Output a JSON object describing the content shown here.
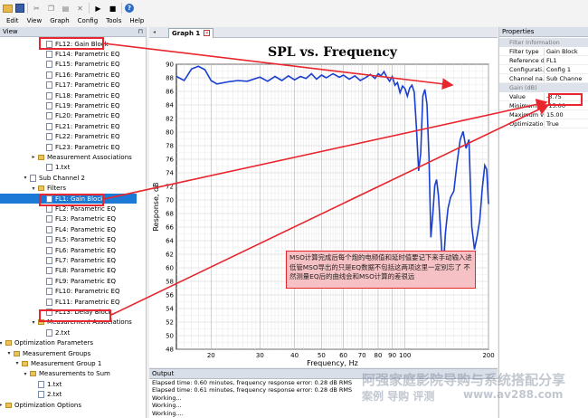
{
  "menu": [
    "Edit",
    "View",
    "Graph",
    "Config",
    "Tools",
    "Help"
  ],
  "view_panel": {
    "title": "View",
    "items": [
      {
        "label": "FL12: Gain Block",
        "level": 5,
        "icon": "doc"
      },
      {
        "label": "FL14: Parametric EQ",
        "level": 5,
        "icon": "doc"
      },
      {
        "label": "FL15: Parametric EQ",
        "level": 5,
        "icon": "doc"
      },
      {
        "label": "FL16: Parametric EQ",
        "level": 5,
        "icon": "doc"
      },
      {
        "label": "FL17: Parametric EQ",
        "level": 5,
        "icon": "doc"
      },
      {
        "label": "FL18: Parametric EQ",
        "level": 5,
        "icon": "doc"
      },
      {
        "label": "FL19: Parametric EQ",
        "level": 5,
        "icon": "doc"
      },
      {
        "label": "FL20: Parametric EQ",
        "level": 5,
        "icon": "doc"
      },
      {
        "label": "FL21: Parametric EQ",
        "level": 5,
        "icon": "doc"
      },
      {
        "label": "FL22: Parametric EQ",
        "level": 5,
        "icon": "doc"
      },
      {
        "label": "FL23: Parametric EQ",
        "level": 5,
        "icon": "doc"
      },
      {
        "label": "Measurement Associations",
        "level": 4,
        "icon": "folder",
        "toggle": "▸"
      },
      {
        "label": "1.txt",
        "level": 5,
        "icon": "doc"
      },
      {
        "label": "Sub Channel 2",
        "level": 3,
        "icon": "doc",
        "toggle": "▾"
      },
      {
        "label": "Filters",
        "level": 4,
        "icon": "folder",
        "toggle": "▾"
      },
      {
        "label": "FL1: Gain Block",
        "level": 5,
        "icon": "doc",
        "selected": true
      },
      {
        "label": "FL2: Parametric EQ",
        "level": 5,
        "icon": "doc"
      },
      {
        "label": "FL3: Parametric EQ",
        "level": 5,
        "icon": "doc"
      },
      {
        "label": "FL4: Parametric EQ",
        "level": 5,
        "icon": "doc"
      },
      {
        "label": "FL5: Parametric EQ",
        "level": 5,
        "icon": "doc"
      },
      {
        "label": "FL6: Parametric EQ",
        "level": 5,
        "icon": "doc"
      },
      {
        "label": "FL7: Parametric EQ",
        "level": 5,
        "icon": "doc"
      },
      {
        "label": "FL8: Parametric EQ",
        "level": 5,
        "icon": "doc"
      },
      {
        "label": "FL9: Parametric EQ",
        "level": 5,
        "icon": "doc"
      },
      {
        "label": "FL10: Parametric EQ",
        "level": 5,
        "icon": "doc"
      },
      {
        "label": "FL11: Parametric EQ",
        "level": 5,
        "icon": "doc"
      },
      {
        "label": "FL13: Delay Block",
        "level": 5,
        "icon": "doc"
      },
      {
        "label": "Measurement Associations",
        "level": 4,
        "icon": "folder",
        "toggle": "▾"
      },
      {
        "label": "2.txt",
        "level": 5,
        "icon": "doc"
      },
      {
        "label": "Optimization Parameters",
        "level": 0,
        "icon": "folder",
        "toggle": "▾"
      },
      {
        "label": "Measurement Groups",
        "level": 1,
        "icon": "folder",
        "toggle": "▾"
      },
      {
        "label": "Measurement Group 1",
        "level": 2,
        "icon": "folder",
        "toggle": "▾"
      },
      {
        "label": "Measurements to Sum",
        "level": 3,
        "icon": "folder",
        "toggle": "▾"
      },
      {
        "label": "1.txt",
        "level": 4,
        "icon": "doc"
      },
      {
        "label": "2.txt",
        "level": 4,
        "icon": "doc"
      },
      {
        "label": "Optimization Options",
        "level": 0,
        "icon": "folder",
        "toggle": "▸"
      }
    ]
  },
  "graph_tab": {
    "label": "Graph 1"
  },
  "chart_data": {
    "type": "line",
    "title": "SPL vs. Frequency",
    "xlabel": "Frequency, Hz",
    "ylabel": "Response, dB",
    "xscale": "log",
    "xlim": [
      15,
      200
    ],
    "ylim": [
      48,
      90
    ],
    "xticks": [
      20,
      30,
      40,
      50,
      60,
      70,
      80,
      90,
      100,
      200
    ],
    "yticks": [
      48,
      50,
      52,
      54,
      56,
      58,
      60,
      62,
      64,
      66,
      68,
      70,
      72,
      74,
      76,
      78,
      80,
      82,
      84,
      86,
      88,
      90
    ],
    "grid": true,
    "series": [
      {
        "color": "#1a3fd0",
        "points": [
          [
            15,
            88.2
          ],
          [
            16,
            87.6
          ],
          [
            17,
            89.3
          ],
          [
            18,
            89.7
          ],
          [
            19,
            89.2
          ],
          [
            20,
            87.6
          ],
          [
            21,
            87.1
          ],
          [
            23,
            87.4
          ],
          [
            25,
            87.6
          ],
          [
            27,
            87.5
          ],
          [
            30,
            88.1
          ],
          [
            32,
            87.5
          ],
          [
            34,
            88.2
          ],
          [
            36,
            87.6
          ],
          [
            38,
            88.3
          ],
          [
            40,
            87.7
          ],
          [
            42,
            88.2
          ],
          [
            44,
            87.9
          ],
          [
            46,
            88.6
          ],
          [
            48,
            87.8
          ],
          [
            50,
            88.4
          ],
          [
            52,
            88.0
          ],
          [
            55,
            88.6
          ],
          [
            58,
            88.1
          ],
          [
            60,
            88.4
          ],
          [
            63,
            87.8
          ],
          [
            66,
            88.3
          ],
          [
            69,
            87.6
          ],
          [
            72,
            88.0
          ],
          [
            75,
            88.5
          ],
          [
            78,
            87.9
          ],
          [
            80,
            88.6
          ],
          [
            82,
            88.3
          ],
          [
            84,
            88.9
          ],
          [
            86,
            88.1
          ],
          [
            88,
            87.5
          ],
          [
            90,
            88.2
          ],
          [
            92,
            86.9
          ],
          [
            94,
            87.3
          ],
          [
            96,
            85.8
          ],
          [
            98,
            86.8
          ],
          [
            100,
            86.4
          ],
          [
            102,
            85.3
          ],
          [
            104,
            86.5
          ],
          [
            106,
            86.9
          ],
          [
            108,
            85.9
          ],
          [
            110,
            80.5
          ],
          [
            112,
            74.3
          ],
          [
            114,
            76.9
          ],
          [
            116,
            85.3
          ],
          [
            118,
            86.3
          ],
          [
            120,
            84.1
          ],
          [
            122,
            76.4
          ],
          [
            124,
            64.5
          ],
          [
            126,
            68.0
          ],
          [
            128,
            72.1
          ],
          [
            130,
            73.0
          ],
          [
            132,
            70.6
          ],
          [
            134,
            66.2
          ],
          [
            136,
            62.0
          ],
          [
            138,
            61.2
          ],
          [
            140,
            65.3
          ],
          [
            143,
            68.8
          ],
          [
            146,
            70.4
          ],
          [
            150,
            71.3
          ],
          [
            154,
            75.4
          ],
          [
            158,
            78.8
          ],
          [
            162,
            80.1
          ],
          [
            166,
            77.6
          ],
          [
            170,
            78.9
          ],
          [
            174,
            66.1
          ],
          [
            178,
            62.7
          ],
          [
            182,
            64.6
          ],
          [
            186,
            67.0
          ],
          [
            190,
            71.8
          ],
          [
            194,
            75.1
          ],
          [
            197,
            74.5
          ],
          [
            200,
            69.4
          ]
        ]
      }
    ]
  },
  "properties": {
    "title": "Properties",
    "group1": "Filter Information",
    "rows1": [
      {
        "k": "Filter type",
        "v": "Gain Block"
      },
      {
        "k": "Reference d...",
        "v": "FL1"
      },
      {
        "k": "Configurati...",
        "v": "Config 1"
      },
      {
        "k": "Channel na...",
        "v": "Sub Channe"
      }
    ],
    "group2": "Gain (dB)",
    "rows2": [
      {
        "k": "Value",
        "v": "-3.75"
      },
      {
        "k": "Minimum v...",
        "v": "-15.00"
      },
      {
        "k": "Maximum v...",
        "v": "15.00"
      },
      {
        "k": "Optimizatio...",
        "v": "True"
      }
    ]
  },
  "output": {
    "title": "Output",
    "lines": [
      "Elapsed time: 0.60 minutes, frequency response error: 0.28 dB RMS",
      "Elapsed time: 0.61 minutes, frequency response error: 0.28 dB RMS",
      "Working...",
      "Working...",
      "Working...."
    ]
  },
  "annotation": {
    "note": "MSO计算完成后每个炮的电频值和延时值要记下来手动输入进低管MSO导出的只是EQ数据不包括这两项这里一定别忘了 不然测量EQ后的曲线会和MSO计算的差很远",
    "color": "#e8262e"
  },
  "watermark": {
    "line1": "阿强家庭影院导购与系统搭配分享",
    "line2": "案例  导购  评测",
    "line3": "www.av288.com"
  }
}
